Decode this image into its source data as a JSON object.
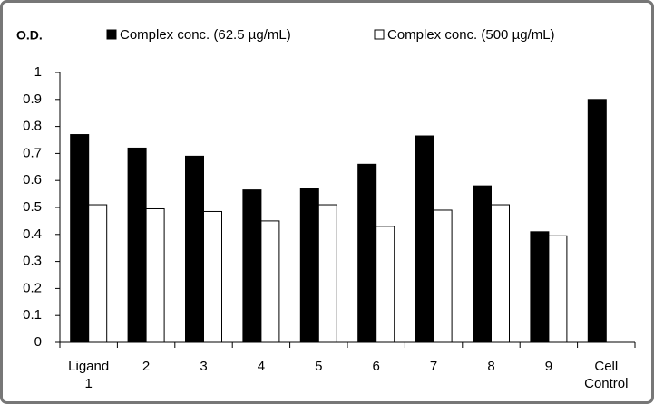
{
  "chart_data": {
    "type": "bar",
    "y_label": "O.D.",
    "categories": [
      "Ligand 1",
      "2",
      "3",
      "4",
      "5",
      "6",
      "7",
      "8",
      "9",
      "Cell Control"
    ],
    "series": [
      {
        "name": "Complex conc. (62.5 µg/mL)",
        "color": "#000000",
        "values": [
          0.77,
          0.72,
          0.69,
          0.565,
          0.57,
          0.66,
          0.765,
          0.58,
          0.41,
          0.9
        ]
      },
      {
        "name": "Complex conc. (500 µg/mL)",
        "color": "#ffffff",
        "values": [
          0.51,
          0.495,
          0.485,
          0.45,
          0.51,
          0.43,
          0.49,
          0.51,
          0.395,
          null
        ]
      }
    ],
    "ylim": [
      0,
      1
    ],
    "yticks": [
      0,
      0.1,
      0.2,
      0.3,
      0.4,
      0.5,
      0.6,
      0.7,
      0.8,
      0.9,
      1
    ],
    "legend": "top"
  }
}
